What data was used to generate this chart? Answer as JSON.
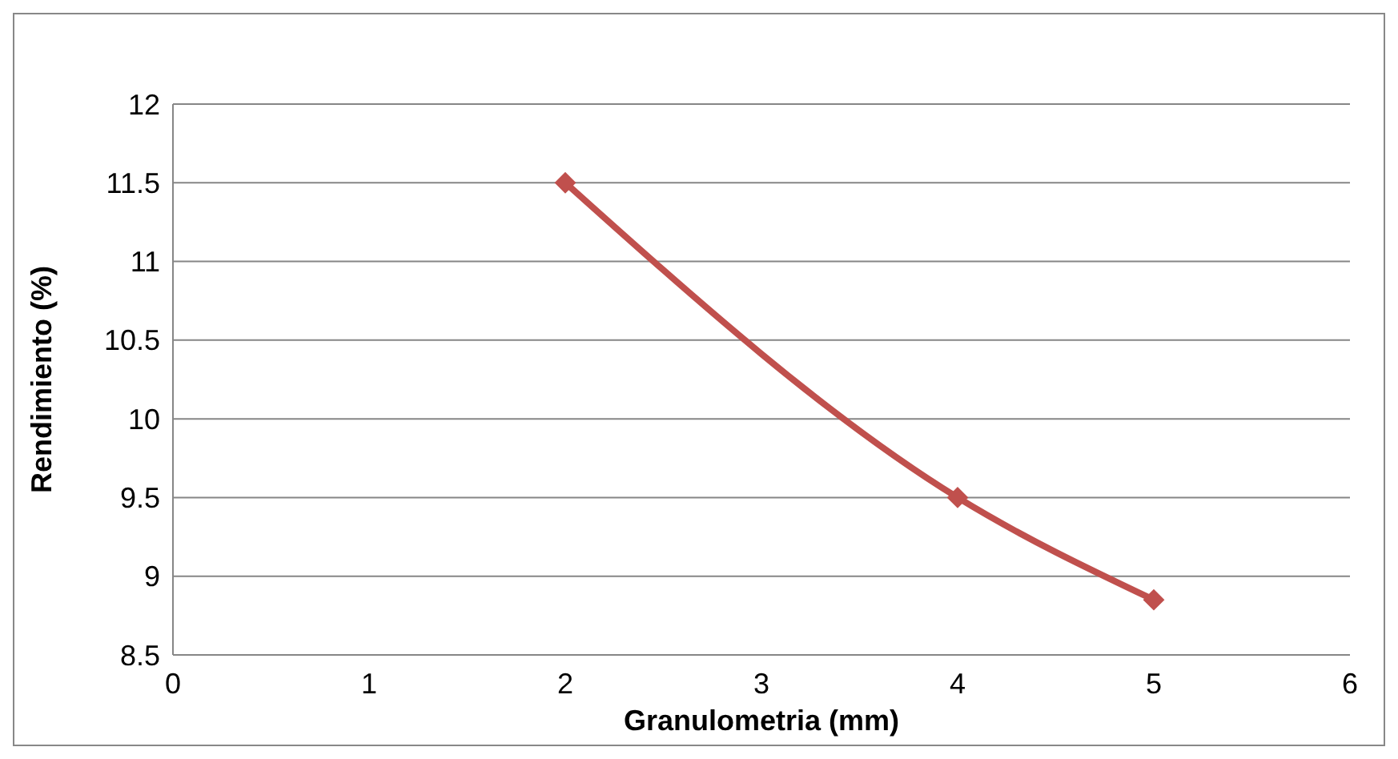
{
  "chart_data": {
    "type": "line",
    "xlabel": "Granulometria (mm)",
    "ylabel": "Rendimiento (%)",
    "x": [
      2,
      4,
      5
    ],
    "series": [
      {
        "color": "#c0504d",
        "values": [
          11.5,
          9.5,
          8.85
        ]
      }
    ],
    "xlim": [
      0,
      6
    ],
    "xticks": [
      0,
      1,
      2,
      3,
      4,
      5,
      6
    ],
    "ylim": [
      8.5,
      12
    ],
    "yticks": [
      8.5,
      9,
      9.5,
      10,
      10.5,
      11,
      11.5,
      12
    ],
    "grid": "y",
    "marker": "diamond",
    "line_style": "solid"
  }
}
